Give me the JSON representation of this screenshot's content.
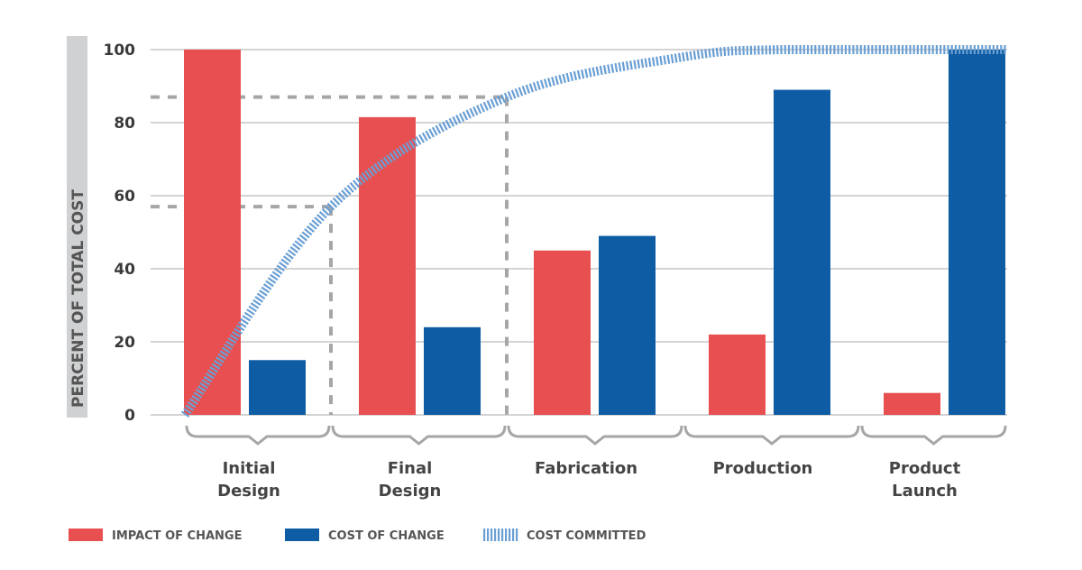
{
  "chart_data": {
    "type": "bar",
    "ylabel": "PERCENT OF TOTAL COST",
    "ylim": [
      0,
      100
    ],
    "yticks": [
      "0",
      "20",
      "40",
      "60",
      "80",
      "100"
    ],
    "grid": true,
    "categories": [
      [
        "Initial",
        "Design"
      ],
      [
        "Final",
        "Design"
      ],
      [
        "Fabrication"
      ],
      [
        "Production"
      ],
      [
        "Product",
        "Launch"
      ]
    ],
    "series": [
      {
        "name": "IMPACT OF CHANGE",
        "type": "bar",
        "color": "#e84f50",
        "values": [
          100,
          81.5,
          45,
          22,
          6
        ]
      },
      {
        "name": "COST OF CHANGE",
        "type": "bar",
        "color": "#0e5ca3",
        "values": [
          15,
          24,
          49,
          89,
          100
        ]
      },
      {
        "name": "COST COMMITTED",
        "type": "line",
        "style": "striped",
        "color": "#6a9fd4",
        "values_at_phase_boundaries": [
          0,
          57,
          87,
          98,
          100,
          100
        ]
      }
    ],
    "reference_lines": [
      {
        "value": 57,
        "at_end_of": "Initial Design"
      },
      {
        "value": 87,
        "at_end_of": "Final Design"
      }
    ],
    "legend_position": "bottom-left"
  }
}
